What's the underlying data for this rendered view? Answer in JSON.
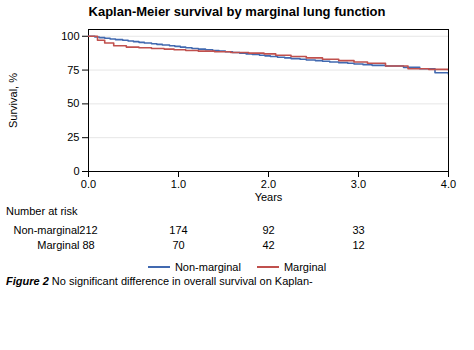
{
  "chart_data": {
    "type": "step",
    "title": "Kaplan-Meier survival by marginal lung function",
    "x_label": "Years",
    "y_label": "Survival, %",
    "xlim": [
      0,
      4
    ],
    "ylim": [
      0,
      105
    ],
    "xticks": [
      0,
      1,
      2,
      3,
      4
    ],
    "yticks": [
      0,
      25,
      50,
      75,
      100
    ],
    "grid": true,
    "legend": "bottom",
    "series": [
      {
        "name": "Non-marginal",
        "color": "#4169b0",
        "x": [
          0,
          0.07,
          0.12,
          0.18,
          0.24,
          0.3,
          0.38,
          0.44,
          0.5,
          0.56,
          0.62,
          0.7,
          0.76,
          0.82,
          0.9,
          0.96,
          1.02,
          1.08,
          1.15,
          1.22,
          1.3,
          1.38,
          1.45,
          1.52,
          1.6,
          1.68,
          1.75,
          1.82,
          1.9,
          1.96,
          2.02,
          2.1,
          2.18,
          2.25,
          2.35,
          2.42,
          2.52,
          2.6,
          2.68,
          2.78,
          2.88,
          2.95,
          3.05,
          3.15,
          3.3,
          3.5,
          3.68,
          3.85,
          4.0
        ],
        "values": [
          100,
          99.5,
          99,
          98.5,
          98,
          97.5,
          97,
          96.5,
          96,
          95.5,
          95,
          94.5,
          94,
          93.5,
          93,
          92.5,
          92,
          91.5,
          91,
          90.5,
          90,
          89.5,
          89,
          88.5,
          88,
          87.5,
          87,
          86.5,
          86,
          85.5,
          85,
          84.5,
          84,
          83.5,
          83,
          82.5,
          82,
          81.5,
          81,
          80.5,
          80,
          79.5,
          79,
          78.5,
          78,
          77,
          76,
          73,
          72
        ]
      },
      {
        "name": "Marginal",
        "color": "#c0504d",
        "x": [
          0,
          0.1,
          0.18,
          0.28,
          0.42,
          0.56,
          0.7,
          0.84,
          0.95,
          1.08,
          1.22,
          1.4,
          1.58,
          1.78,
          1.95,
          2.08,
          2.25,
          2.42,
          2.6,
          2.78,
          2.95,
          3.1,
          3.3,
          3.55,
          3.78,
          4.0
        ],
        "values": [
          100,
          97,
          95,
          93,
          92,
          91.5,
          91,
          90.5,
          90,
          89.5,
          89,
          88.5,
          88,
          87.5,
          87,
          86,
          85,
          84,
          83,
          82,
          81,
          80,
          78,
          76,
          75.5,
          75
        ]
      }
    ],
    "at_risk": {
      "title": "Number at risk",
      "times": [
        0,
        1,
        2,
        3
      ],
      "rows": [
        {
          "name": "Non-marginal",
          "values": [
            212,
            174,
            92,
            33
          ]
        },
        {
          "name": "Marginal",
          "values": [
            88,
            70,
            42,
            12
          ]
        }
      ]
    },
    "caption": {
      "label": "Figure 2",
      "text": "No significant difference in overall survival on Kaplan-"
    }
  }
}
